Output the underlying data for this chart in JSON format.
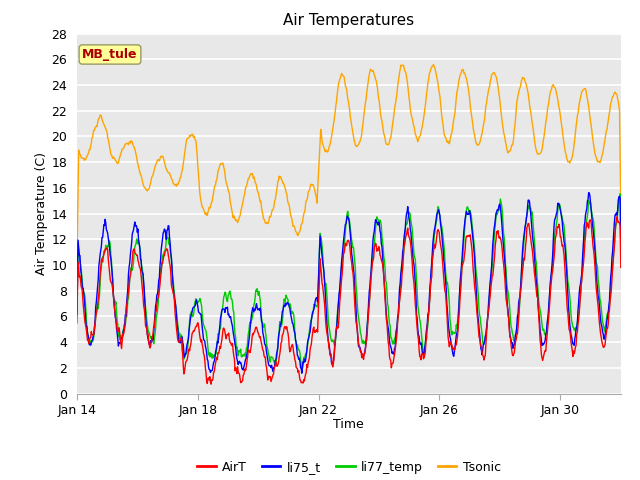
{
  "title": "Air Temperatures",
  "xlabel": "Time",
  "ylabel": "Air Temperature (C)",
  "ylim": [
    0,
    28
  ],
  "yticks": [
    0,
    2,
    4,
    6,
    8,
    10,
    12,
    14,
    16,
    18,
    20,
    22,
    24,
    26,
    28
  ],
  "xtick_positions": [
    0,
    4,
    8,
    12,
    16
  ],
  "xtick_labels": [
    "Jan 14",
    "Jan 18",
    "Jan 22",
    "Jan 26",
    "Jan 30"
  ],
  "colors": {
    "AirT": "#ff0000",
    "li75_t": "#0000ff",
    "li77_temp": "#00cc00",
    "Tsonic": "#ffa500"
  },
  "legend_labels": [
    "AirT",
    "li75_t",
    "li77_temp",
    "Tsonic"
  ],
  "mb_tule_label": "MB_tule",
  "mb_tule_color": "#aa0000",
  "mb_tule_bg": "#ffff99",
  "plot_bg_color": "#e8e8e8",
  "grid_color": "#ffffff",
  "title_fontsize": 11,
  "label_fontsize": 9,
  "tick_fontsize": 9
}
